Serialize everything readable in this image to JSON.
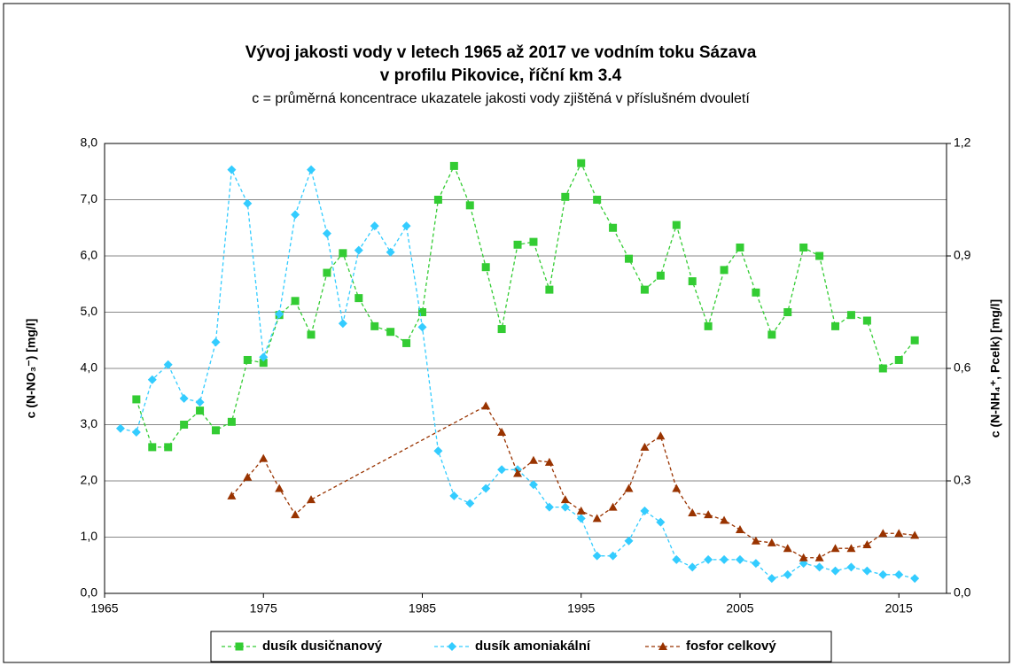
{
  "chart_data": {
    "type": "line",
    "title": "Vývoj jakosti vody v letech 1965 až 2017 ve vodním toku Sázava",
    "title_line2": "v profilu Pikovice, říční km 3.4",
    "subtitle": "c = průměrná koncentrace ukazatele jakosti vody zjištěná v příslušném dvouletí",
    "ylabel": "c (N-NO₃⁻) [mg/l]",
    "y2label": "c (N-NH₄⁺, Pcelk) [mg/l]",
    "xlim": [
      1965,
      2018
    ],
    "xticks": [
      1965,
      1975,
      1985,
      1995,
      2005,
      2015
    ],
    "ylim": [
      0,
      8
    ],
    "yticks": [
      {
        "value": 0,
        "label": "0,0"
      },
      {
        "value": 1,
        "label": "1,0"
      },
      {
        "value": 2,
        "label": "2,0"
      },
      {
        "value": 3,
        "label": "3,0"
      },
      {
        "value": 4,
        "label": "4,0"
      },
      {
        "value": 5,
        "label": "5,0"
      },
      {
        "value": 6,
        "label": "6,0"
      },
      {
        "value": 7,
        "label": "7,0"
      },
      {
        "value": 8,
        "label": "8,0"
      }
    ],
    "y2lim": [
      0,
      1.2
    ],
    "y2ticks": [
      {
        "value": 0,
        "label": "0,0"
      },
      {
        "value": 0.3,
        "label": "0,3"
      },
      {
        "value": 0.6,
        "label": "0,6"
      },
      {
        "value": 0.9,
        "label": "0,9"
      },
      {
        "value": 1.2,
        "label": "1,2"
      }
    ],
    "grid": true,
    "legend": "bottom",
    "series": [
      {
        "name": "dusík dusičnanový",
        "color": "#33cc33",
        "marker": "square",
        "x": [
          1967,
          1968,
          1969,
          1970,
          1971,
          1972,
          1973,
          1974,
          1975,
          1976,
          1977,
          1978,
          1979,
          1980,
          1981,
          1982,
          1983,
          1984,
          1985,
          1986,
          1987,
          1988,
          1989,
          1990,
          1991,
          1992,
          1993,
          1994,
          1995,
          1996,
          1997,
          1998,
          1999,
          2000,
          2001,
          2002,
          2003,
          2004,
          2005,
          2006,
          2007,
          2008,
          2009,
          2010,
          2011,
          2012,
          2013,
          2014,
          2015,
          2016
        ],
        "values": [
          3.45,
          2.6,
          2.6,
          3.0,
          3.25,
          2.9,
          3.05,
          4.15,
          4.1,
          4.95,
          5.2,
          4.6,
          5.7,
          6.05,
          5.25,
          4.75,
          4.65,
          4.45,
          5.0,
          7.0,
          7.6,
          6.9,
          5.8,
          4.7,
          6.2,
          6.25,
          5.4,
          7.05,
          7.65,
          7.0,
          6.5,
          5.95,
          5.4,
          5.65,
          6.55,
          5.55,
          4.75,
          5.75,
          6.15,
          5.35,
          4.6,
          5.0,
          6.15,
          6.0,
          4.75,
          4.95,
          4.85,
          4.0,
          4.15,
          4.5
        ]
      },
      {
        "name": "dusík amoniakální",
        "color": "#33ccff",
        "marker": "diamond",
        "axis": "y2",
        "x": [
          1966,
          1967,
          1968,
          1969,
          1970,
          1971,
          1972,
          1973,
          1974,
          1975,
          1976,
          1977,
          1978,
          1979,
          1980,
          1981,
          1982,
          1983,
          1984,
          1985,
          1986,
          1987,
          1988,
          1989,
          1990,
          1991,
          1992,
          1993,
          1994,
          1995,
          1996,
          1997,
          1998,
          1999,
          2000,
          2001,
          2002,
          2003,
          2004,
          2005,
          2006,
          2007,
          2008,
          2009,
          2010,
          2011,
          2012,
          2013,
          2014,
          2015,
          2016
        ],
        "values": [
          0.44,
          0.43,
          0.57,
          0.61,
          0.52,
          0.51,
          0.67,
          1.13,
          1.04,
          0.63,
          0.745,
          1.01,
          1.13,
          0.96,
          0.72,
          0.915,
          0.98,
          0.91,
          0.98,
          0.71,
          0.38,
          0.26,
          0.24,
          0.28,
          0.33,
          0.33,
          0.29,
          0.23,
          0.23,
          0.2,
          0.1,
          0.1,
          0.14,
          0.22,
          0.19,
          0.09,
          0.07,
          0.09,
          0.09,
          0.09,
          0.08,
          0.04,
          0.05,
          0.08,
          0.07,
          0.06,
          0.07,
          0.06,
          0.05,
          0.05,
          0.04
        ]
      },
      {
        "name": "fosfor celkový",
        "color": "#993300",
        "marker": "triangle",
        "axis": "y2",
        "x": [
          1973,
          1974,
          1975,
          1976,
          1977,
          1978,
          1989,
          1990,
          1991,
          1992,
          1993,
          1994,
          1995,
          1996,
          1997,
          1998,
          1999,
          2000,
          2001,
          2002,
          2003,
          2004,
          2005,
          2006,
          2007,
          2008,
          2009,
          2010,
          2011,
          2012,
          2013,
          2014,
          2015,
          2016
        ],
        "values": [
          0.26,
          0.31,
          0.36,
          0.28,
          0.21,
          0.25,
          0.5,
          0.43,
          0.32,
          0.355,
          0.35,
          0.25,
          0.22,
          0.2,
          0.23,
          0.28,
          0.39,
          0.42,
          0.28,
          0.215,
          0.21,
          0.195,
          0.17,
          0.14,
          0.135,
          0.12,
          0.095,
          0.095,
          0.12,
          0.12,
          0.13,
          0.16,
          0.16,
          0.155
        ]
      }
    ]
  }
}
